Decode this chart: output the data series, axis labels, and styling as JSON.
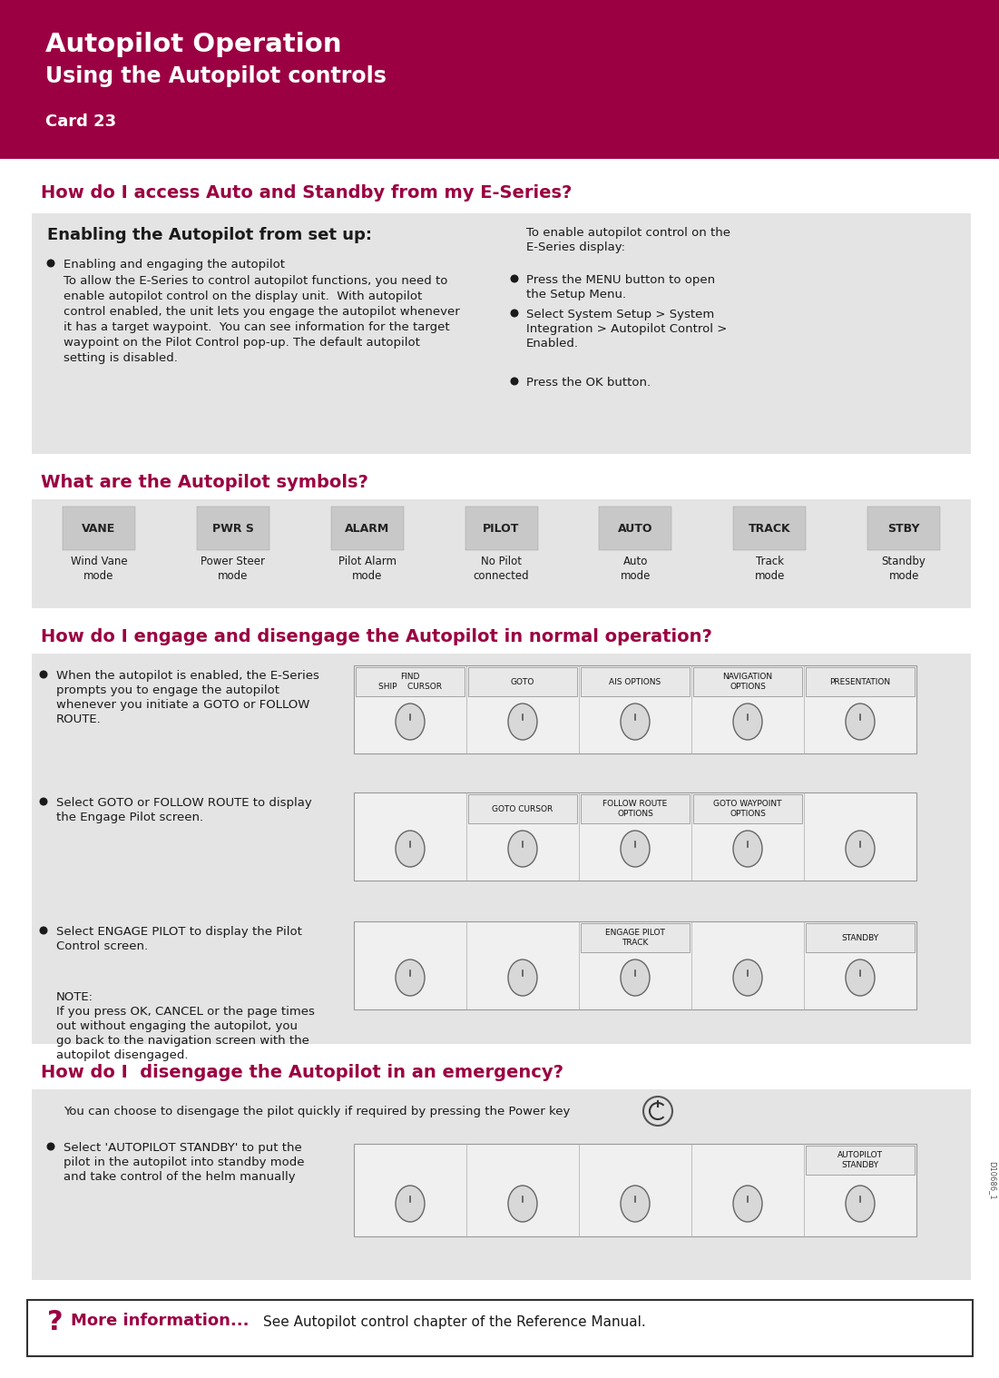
{
  "title_line1": "Autopilot Operation",
  "title_line2": "Using the Autopilot controls",
  "card_label": "Card 23",
  "header_bg": "#9B0042",
  "header_text_color": "#FFFFFF",
  "section_title_color": "#9B0042",
  "body_bg": "#FFFFFF",
  "gray_box_bg": "#E4E4E4",
  "dark_text": "#1a1a1a",
  "section1_title": "How do I access Auto and Standby from my E-Series?",
  "enabling_title": "Enabling the Autopilot from set up:",
  "enabling_body_left_line1": "Enabling and engaging the autopilot",
  "enabling_body_left_lines": [
    "To allow the E-Series to control autopilot functions, you need to",
    "enable autopilot control on the display unit.  With autopilot",
    "control enabled, the unit lets you engage the autopilot whenever",
    "it has a target waypoint.  You can see information for the target",
    "waypoint on the Pilot Control pop-up. The default autopilot",
    "setting is disabled."
  ],
  "enabling_body_right_intro": "To enable autopilot control on the\nE-Series display:",
  "enabling_body_right_bullets": [
    "Press the MENU button to open\nthe Setup Menu.",
    "Select System Setup > System\nIntegration > Autopilot Control >\nEnabled.",
    "Press the OK button."
  ],
  "section2_title": "What are the Autopilot symbols?",
  "symbols": [
    {
      "label": "Wind Vane\nmode",
      "icon": "VANE"
    },
    {
      "label": "Power Steer\nmode",
      "icon": "PWR S"
    },
    {
      "label": "Pilot Alarm\nmode",
      "icon": "ALARM"
    },
    {
      "label": "No Pilot\nconnected",
      "icon": "PILOT"
    },
    {
      "label": "Auto\nmode",
      "icon": "AUTO"
    },
    {
      "label": "Track\nmode",
      "icon": "TRACK"
    },
    {
      "label": "Standby\nmode",
      "icon": "STBY"
    }
  ],
  "section3_title": "How do I engage and disengage the Autopilot in normal operation?",
  "section3_bullet1": "When the autopilot is enabled, the E-Series\nprompts you to engage the autopilot\nwhenever you initiate a GOTO or FOLLOW\nROUTE.",
  "section3_bullet2": "Select GOTO or FOLLOW ROUTE to display\nthe Engage Pilot screen.",
  "section3_bullet3": "Select ENGAGE PILOT to display the Pilot\nControl screen.",
  "section3_note": "NOTE:\nIf you press OK, CANCEL or the page times\nout without engaging the autopilot, you\ngo back to the navigation screen with the\nautopilot disengaged.",
  "softkey_rows": [
    [
      {
        "text": "FIND\nSHIP    CURSOR"
      },
      {
        "text": "GOTO"
      },
      {
        "text": "AIS OPTIONS"
      },
      {
        "text": "NAVIGATION\nOPTIONS"
      },
      {
        "text": "PRESENTATION"
      }
    ],
    [
      {
        "text": ""
      },
      {
        "text": "GOTO CURSOR"
      },
      {
        "text": "FOLLOW ROUTE\nOPTIONS"
      },
      {
        "text": "GOTO WAYPOINT\nOPTIONS"
      },
      {
        "text": ""
      }
    ],
    [
      {
        "text": ""
      },
      {
        "text": ""
      },
      {
        "text": "ENGAGE PILOT\nTRACK"
      },
      {
        "text": ""
      },
      {
        "text": "STANDBY"
      }
    ]
  ],
  "section4_title": "How do I  disengage the Autopilot in an emergency?",
  "section4_text1": "You can choose to disengage the pilot quickly if required by pressing the Power key",
  "section4_bullet": "Select 'AUTOPILOT STANDBY' to put the\npilot in the autopilot into standby mode\nand take control of the helm manually",
  "standby_softkey": [
    {
      "text": ""
    },
    {
      "text": ""
    },
    {
      "text": ""
    },
    {
      "text": ""
    },
    {
      "text": "AUTOPILOT\nSTANDBY"
    }
  ],
  "more_info_text": "More information...",
  "more_info_subtext": "See Autopilot control chapter of the Reference Manual.",
  "doc_id": "D10686_1"
}
